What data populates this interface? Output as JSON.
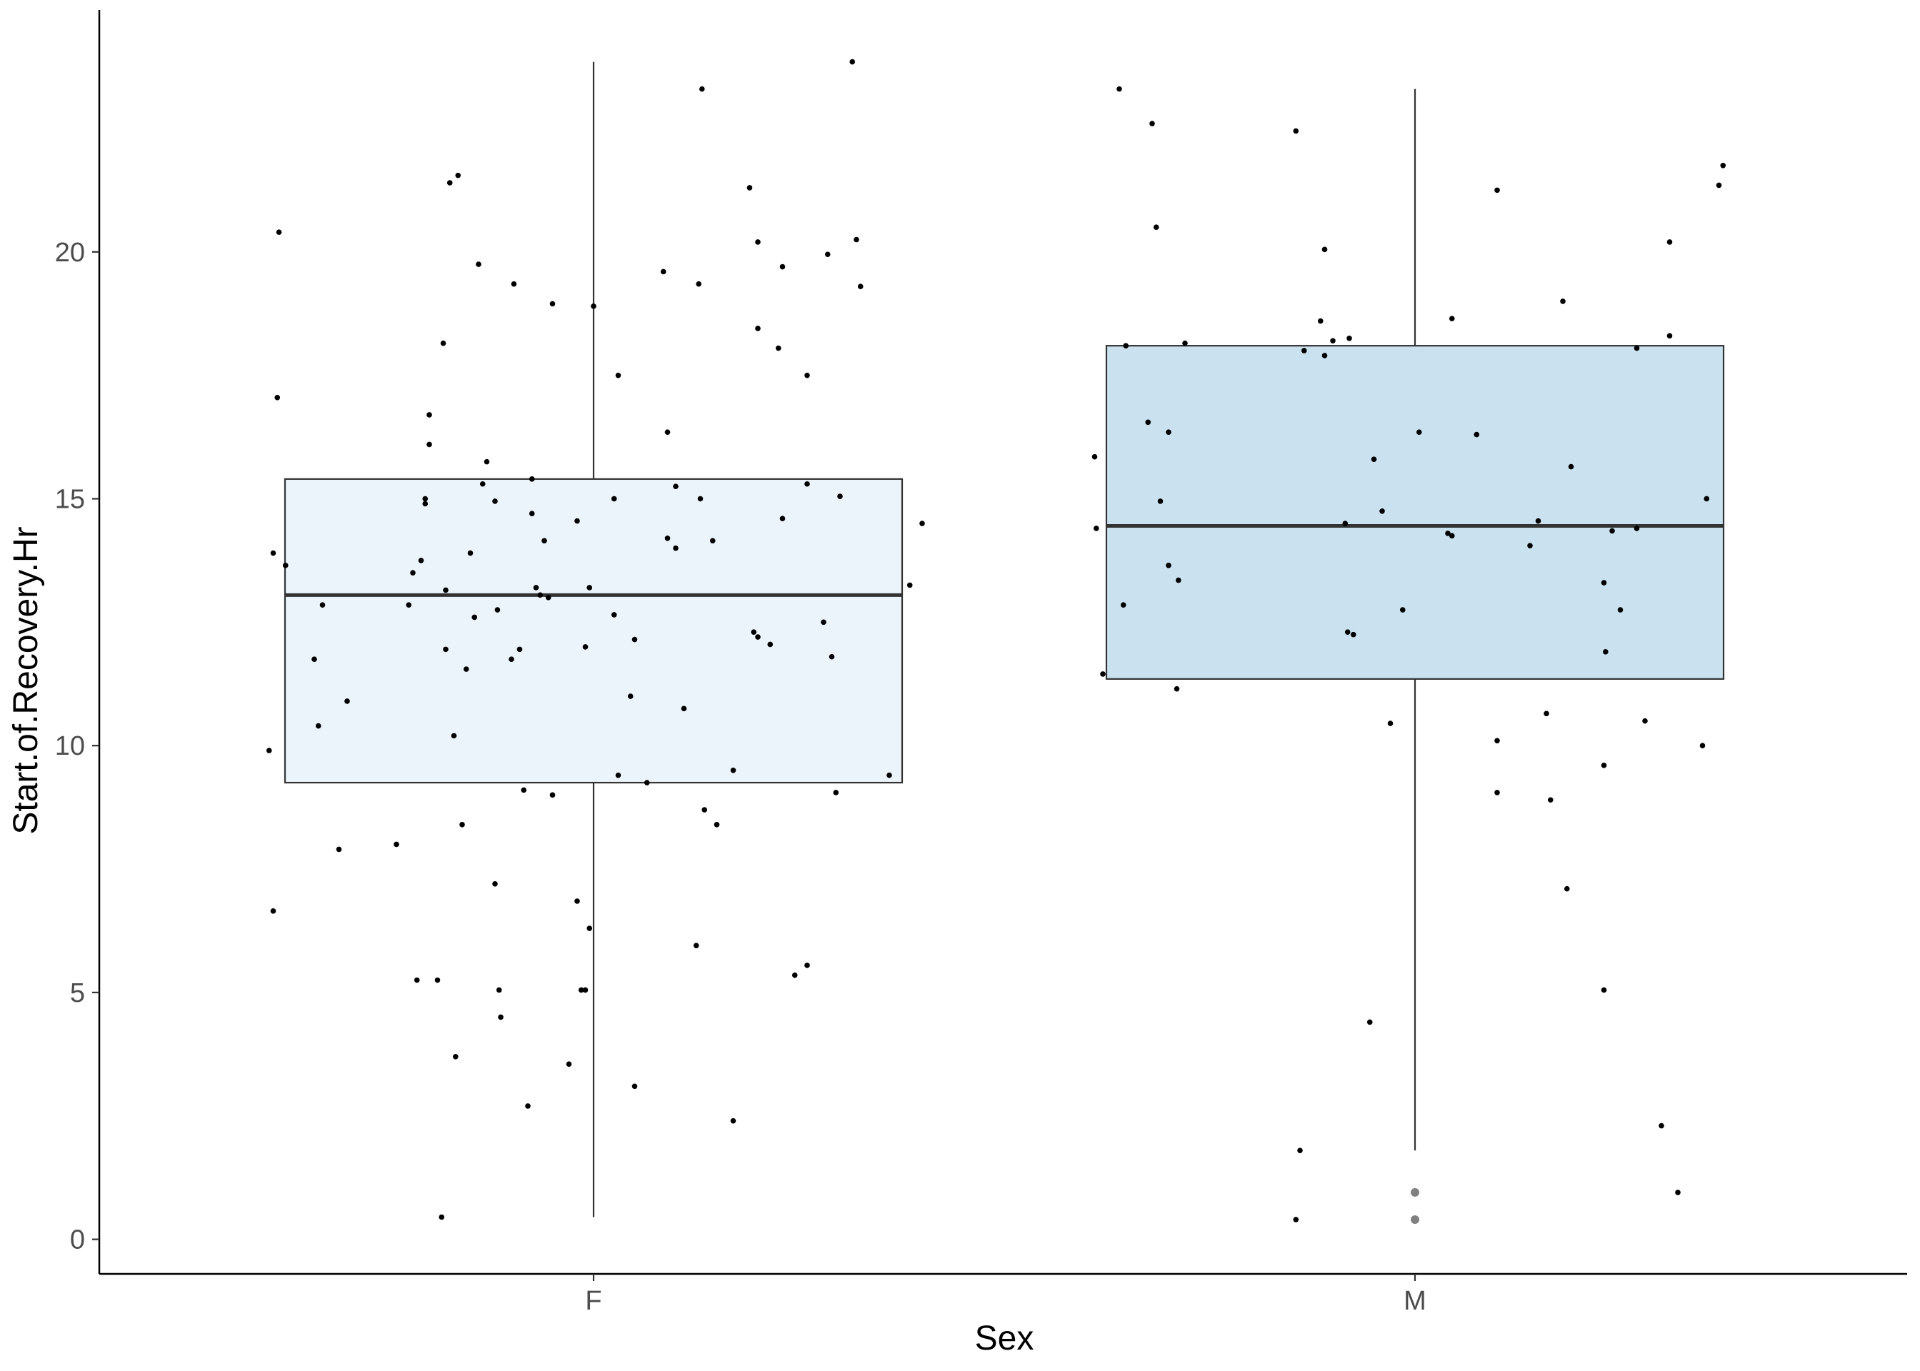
{
  "chart_data": {
    "type": "boxplot",
    "xlabel": "Sex",
    "ylabel": "Start.of.Recovery.Hr",
    "categories": [
      "F",
      "M"
    ],
    "ylim": [
      -0.7,
      24.9
    ],
    "yticks": [
      0,
      5,
      10,
      15,
      20
    ],
    "grid": false,
    "legend": "none",
    "colors": {
      "F": "#ebf3fb",
      "M": "#cae1ef",
      "box_stroke": "#333333",
      "point": "#000000",
      "outlier": "#808080"
    },
    "boxes": [
      {
        "category": "F",
        "whisker_low": 0.45,
        "q1": 9.25,
        "median": 13.05,
        "q3": 15.4,
        "whisker_high": 23.85,
        "outliers": []
      },
      {
        "category": "M",
        "whisker_low": 1.8,
        "q1": 11.35,
        "median": 14.45,
        "q3": 18.1,
        "whisker_high": 23.3,
        "outliers": [
          0.95,
          0.4
        ]
      }
    ],
    "points": [
      {
        "x": -0.395,
        "y": 9.9
      },
      {
        "x": -0.39,
        "y": 13.9
      },
      {
        "x": -0.39,
        "y": 6.65
      },
      {
        "x": -0.385,
        "y": 17.05
      },
      {
        "x": -0.383,
        "y": 20.4
      },
      {
        "x": -0.375,
        "y": 13.65
      },
      {
        "x": -0.34,
        "y": 11.75
      },
      {
        "x": -0.335,
        "y": 10.4
      },
      {
        "x": -0.33,
        "y": 12.85
      },
      {
        "x": -0.31,
        "y": 7.9
      },
      {
        "x": -0.3,
        "y": 10.9
      },
      {
        "x": -0.24,
        "y": 8.0
      },
      {
        "x": -0.225,
        "y": 12.85
      },
      {
        "x": -0.22,
        "y": 13.5
      },
      {
        "x": -0.215,
        "y": 5.25
      },
      {
        "x": -0.21,
        "y": 13.75
      },
      {
        "x": -0.205,
        "y": 14.9
      },
      {
        "x": -0.205,
        "y": 15.0
      },
      {
        "x": -0.2,
        "y": 16.1
      },
      {
        "x": -0.2,
        "y": 16.7
      },
      {
        "x": -0.19,
        "y": 5.25
      },
      {
        "x": -0.185,
        "y": 0.45
      },
      {
        "x": -0.183,
        "y": 18.15
      },
      {
        "x": -0.18,
        "y": 13.15
      },
      {
        "x": -0.18,
        "y": 11.95
      },
      {
        "x": -0.175,
        "y": 21.4
      },
      {
        "x": -0.17,
        "y": 10.2
      },
      {
        "x": -0.168,
        "y": 3.7
      },
      {
        "x": -0.165,
        "y": 21.55
      },
      {
        "x": -0.16,
        "y": 8.4
      },
      {
        "x": -0.155,
        "y": 11.55
      },
      {
        "x": -0.15,
        "y": 13.9
      },
      {
        "x": -0.145,
        "y": 12.6
      },
      {
        "x": -0.14,
        "y": 19.75
      },
      {
        "x": -0.135,
        "y": 15.3
      },
      {
        "x": -0.13,
        "y": 15.75
      },
      {
        "x": -0.12,
        "y": 14.95
      },
      {
        "x": -0.12,
        "y": 7.2
      },
      {
        "x": -0.117,
        "y": 12.75
      },
      {
        "x": -0.115,
        "y": 5.05
      },
      {
        "x": -0.113,
        "y": 4.5
      },
      {
        "x": -0.1,
        "y": 11.75
      },
      {
        "x": -0.097,
        "y": 19.35
      },
      {
        "x": -0.09,
        "y": 11.95
      },
      {
        "x": -0.085,
        "y": 9.1
      },
      {
        "x": -0.08,
        "y": 2.7
      },
      {
        "x": -0.075,
        "y": 15.4
      },
      {
        "x": -0.075,
        "y": 14.7
      },
      {
        "x": -0.07,
        "y": 13.2
      },
      {
        "x": -0.065,
        "y": 13.05
      },
      {
        "x": -0.06,
        "y": 14.15
      },
      {
        "x": -0.055,
        "y": 13.0
      },
      {
        "x": -0.05,
        "y": 9.0
      },
      {
        "x": -0.05,
        "y": 18.95
      },
      {
        "x": -0.03,
        "y": 3.55
      },
      {
        "x": -0.02,
        "y": 14.55
      },
      {
        "x": -0.02,
        "y": 6.85
      },
      {
        "x": -0.015,
        "y": 5.05
      },
      {
        "x": -0.01,
        "y": 12.0
      },
      {
        "x": -0.01,
        "y": 5.05
      },
      {
        "x": -0.005,
        "y": 13.2
      },
      {
        "x": -0.005,
        "y": 6.3
      },
      {
        "x": 0.0,
        "y": 18.9
      },
      {
        "x": 0.05,
        "y": 3.1
      },
      {
        "x": 0.05,
        "y": 12.15
      },
      {
        "x": 0.025,
        "y": 15.0
      },
      {
        "x": 0.025,
        "y": 12.65
      },
      {
        "x": 0.03,
        "y": 17.5
      },
      {
        "x": 0.03,
        "y": 9.4
      },
      {
        "x": 0.045,
        "y": 11.0
      },
      {
        "x": 0.065,
        "y": 9.25
      },
      {
        "x": 0.085,
        "y": 19.6
      },
      {
        "x": 0.09,
        "y": 16.35
      },
      {
        "x": 0.09,
        "y": 14.2
      },
      {
        "x": 0.1,
        "y": 15.25
      },
      {
        "x": 0.1,
        "y": 14.0
      },
      {
        "x": 0.11,
        "y": 10.75
      },
      {
        "x": 0.125,
        "y": 5.95
      },
      {
        "x": 0.128,
        "y": 19.35
      },
      {
        "x": 0.13,
        "y": 15.0
      },
      {
        "x": 0.132,
        "y": 23.3
      },
      {
        "x": 0.135,
        "y": 8.7
      },
      {
        "x": 0.145,
        "y": 14.15
      },
      {
        "x": 0.15,
        "y": 8.4
      },
      {
        "x": 0.17,
        "y": 9.5
      },
      {
        "x": 0.17,
        "y": 2.4
      },
      {
        "x": 0.19,
        "y": 21.3
      },
      {
        "x": 0.195,
        "y": 12.3
      },
      {
        "x": 0.2,
        "y": 20.2
      },
      {
        "x": 0.2,
        "y": 18.45
      },
      {
        "x": 0.2,
        "y": 12.2
      },
      {
        "x": 0.215,
        "y": 12.05
      },
      {
        "x": 0.225,
        "y": 18.05
      },
      {
        "x": 0.23,
        "y": 19.7
      },
      {
        "x": 0.23,
        "y": 14.6
      },
      {
        "x": 0.245,
        "y": 5.35
      },
      {
        "x": 0.26,
        "y": 15.3
      },
      {
        "x": 0.26,
        "y": 5.55
      },
      {
        "x": 0.26,
        "y": 17.5
      },
      {
        "x": 0.28,
        "y": 12.5
      },
      {
        "x": 0.285,
        "y": 19.95
      },
      {
        "x": 0.29,
        "y": 11.8
      },
      {
        "x": 0.295,
        "y": 9.05
      },
      {
        "x": 0.3,
        "y": 15.05
      },
      {
        "x": 0.315,
        "y": 23.85
      },
      {
        "x": 0.32,
        "y": 20.25
      },
      {
        "x": 0.325,
        "y": 19.3
      },
      {
        "x": 0.36,
        "y": 9.4
      },
      {
        "x": 0.385,
        "y": 13.25
      },
      {
        "x": 0.4,
        "y": 14.5
      },
      {
        "x": 0.61,
        "y": 15.85
      },
      {
        "x": 0.612,
        "y": 14.4
      },
      {
        "x": 0.62,
        "y": 11.45
      },
      {
        "x": 0.64,
        "y": 23.3
      },
      {
        "x": 0.645,
        "y": 12.85
      },
      {
        "x": 0.648,
        "y": 18.1
      },
      {
        "x": 0.675,
        "y": 16.55
      },
      {
        "x": 0.68,
        "y": 22.6
      },
      {
        "x": 0.685,
        "y": 20.5
      },
      {
        "x": 0.69,
        "y": 14.95
      },
      {
        "x": 0.7,
        "y": 16.35
      },
      {
        "x": 0.7,
        "y": 13.65
      },
      {
        "x": 0.71,
        "y": 11.15
      },
      {
        "x": 0.712,
        "y": 13.35
      },
      {
        "x": 0.72,
        "y": 18.15
      },
      {
        "x": 0.855,
        "y": 0.4
      },
      {
        "x": 0.855,
        "y": 22.45
      },
      {
        "x": 0.86,
        "y": 1.8
      },
      {
        "x": 0.865,
        "y": 18.0
      },
      {
        "x": 0.885,
        "y": 18.6
      },
      {
        "x": 0.89,
        "y": 17.9
      },
      {
        "x": 0.89,
        "y": 20.05
      },
      {
        "x": 0.9,
        "y": 18.2
      },
      {
        "x": 0.915,
        "y": 14.5
      },
      {
        "x": 0.918,
        "y": 12.3
      },
      {
        "x": 0.92,
        "y": 18.25
      },
      {
        "x": 0.925,
        "y": 12.25
      },
      {
        "x": 0.945,
        "y": 4.4
      },
      {
        "x": 0.95,
        "y": 15.8
      },
      {
        "x": 0.97,
        "y": 10.45
      },
      {
        "x": 0.96,
        "y": 14.75
      },
      {
        "x": 0.985,
        "y": 12.75
      },
      {
        "x": 1.005,
        "y": 16.35
      },
      {
        "x": 1.04,
        "y": 14.3
      },
      {
        "x": 1.045,
        "y": 14.25
      },
      {
        "x": 1.075,
        "y": 16.3
      },
      {
        "x": 1.045,
        "y": 18.65
      },
      {
        "x": 1.1,
        "y": 10.1
      },
      {
        "x": 1.1,
        "y": 9.05
      },
      {
        "x": 1.1,
        "y": 21.25
      },
      {
        "x": 1.14,
        "y": 14.05
      },
      {
        "x": 1.15,
        "y": 14.55
      },
      {
        "x": 1.16,
        "y": 10.65
      },
      {
        "x": 1.165,
        "y": 8.9
      },
      {
        "x": 1.18,
        "y": 19.0
      },
      {
        "x": 1.185,
        "y": 7.1
      },
      {
        "x": 1.19,
        "y": 15.65
      },
      {
        "x": 1.23,
        "y": 13.3
      },
      {
        "x": 1.232,
        "y": 11.9
      },
      {
        "x": 1.23,
        "y": 9.6
      },
      {
        "x": 1.23,
        "y": 5.05
      },
      {
        "x": 1.24,
        "y": 14.35
      },
      {
        "x": 1.25,
        "y": 12.75
      },
      {
        "x": 1.27,
        "y": 14.4
      },
      {
        "x": 1.27,
        "y": 18.05
      },
      {
        "x": 1.28,
        "y": 10.5
      },
      {
        "x": 1.3,
        "y": 2.3
      },
      {
        "x": 1.31,
        "y": 20.2
      },
      {
        "x": 1.31,
        "y": 18.3
      },
      {
        "x": 1.32,
        "y": 0.95
      },
      {
        "x": 1.35,
        "y": 10.0
      },
      {
        "x": 1.355,
        "y": 15.0
      },
      {
        "x": 1.37,
        "y": 21.35
      },
      {
        "x": 1.375,
        "y": 21.75
      }
    ]
  }
}
